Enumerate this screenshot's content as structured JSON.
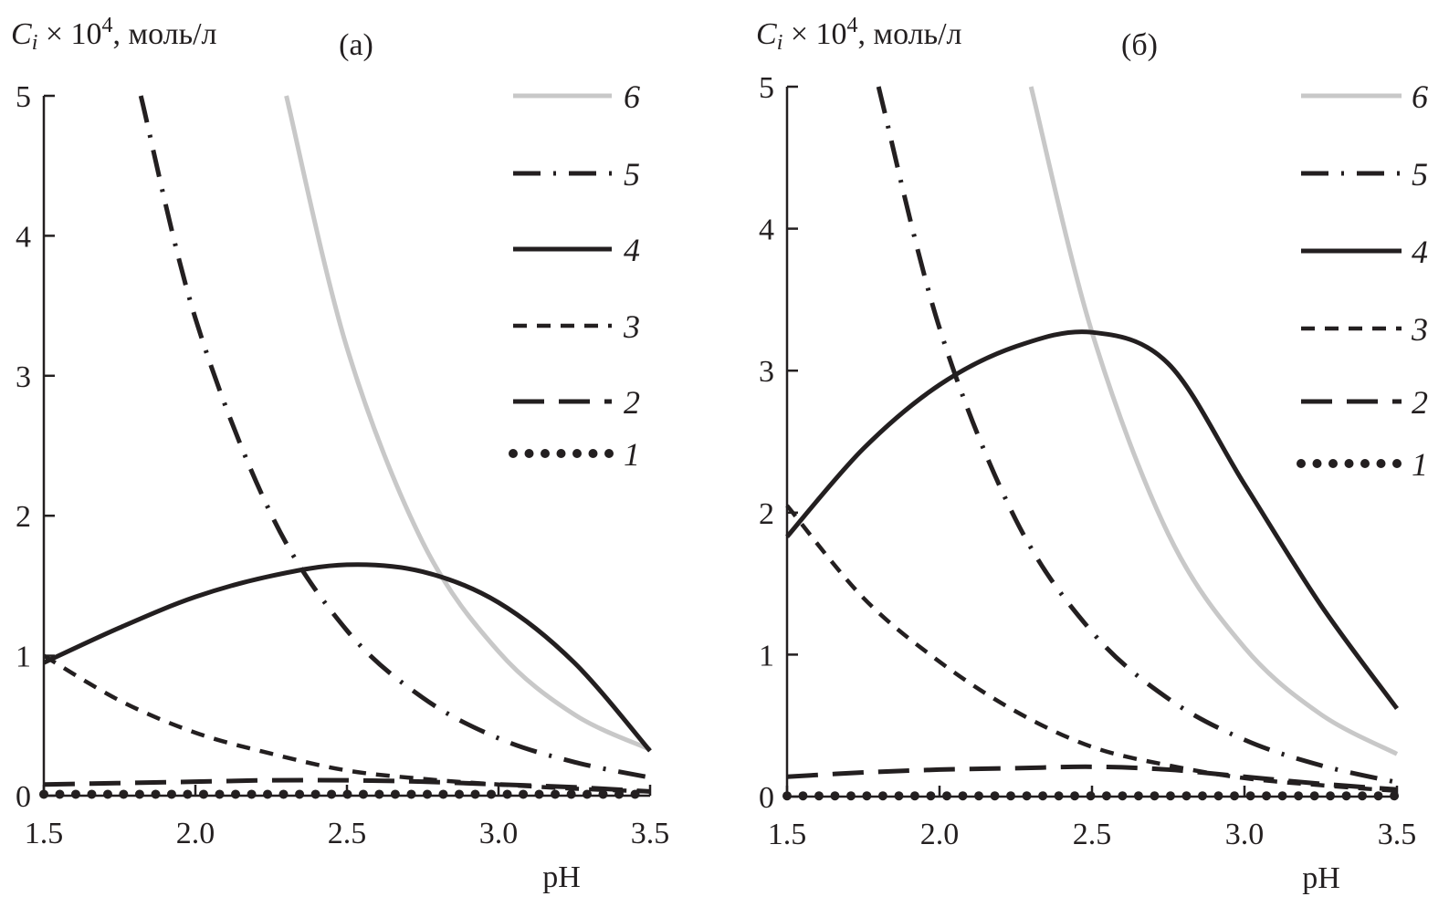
{
  "chart_data": [
    {
      "type": "line",
      "panel_label": "(а)",
      "ylabel": "Ci × 10⁴, моль/л",
      "ylabel_parts": {
        "symbol": "C",
        "subscript": "i",
        "rest": " × 10",
        "exp": "4",
        "unit": ", моль/л"
      },
      "xlabel": "pH",
      "xlim": [
        1.5,
        3.5
      ],
      "ylim": [
        0,
        5
      ],
      "xticks": [
        "1.5",
        "2.0",
        "2.5",
        "3.0",
        "3.5"
      ],
      "yticks": [
        "0",
        "1",
        "2",
        "3",
        "4",
        "5"
      ],
      "grid": false,
      "legend_position": "right",
      "series": [
        {
          "name": "6",
          "color": "#c8c8c8",
          "style": "solid-gray",
          "x": [
            2.3,
            2.5,
            2.75,
            3.0,
            3.25,
            3.5
          ],
          "y": [
            5.0,
            3.2,
            1.81,
            1.03,
            0.58,
            0.33
          ]
        },
        {
          "name": "5",
          "color": "#231f20",
          "style": "dash-dot",
          "x": [
            1.82,
            2.0,
            2.25,
            2.5,
            2.75,
            3.0,
            3.25,
            3.5
          ],
          "y": [
            5.0,
            3.41,
            2.01,
            1.18,
            0.7,
            0.41,
            0.24,
            0.13
          ]
        },
        {
          "name": "4",
          "color": "#231f20",
          "style": "solid",
          "x": [
            1.5,
            1.75,
            2.0,
            2.25,
            2.5,
            2.75,
            3.0,
            3.25,
            3.5
          ],
          "y": [
            0.95,
            1.2,
            1.42,
            1.57,
            1.65,
            1.6,
            1.38,
            0.95,
            0.32
          ]
        },
        {
          "name": "3",
          "color": "#231f20",
          "style": "short-dash",
          "x": [
            1.5,
            1.75,
            2.0,
            2.25,
            2.5,
            2.75,
            3.0,
            3.25,
            3.5
          ],
          "y": [
            1.0,
            0.68,
            0.45,
            0.3,
            0.18,
            0.12,
            0.08,
            0.05,
            0.03
          ]
        },
        {
          "name": "2",
          "color": "#231f20",
          "style": "long-dash",
          "x": [
            1.5,
            1.75,
            2.0,
            2.25,
            2.5,
            2.75,
            3.0,
            3.25,
            3.5
          ],
          "y": [
            0.08,
            0.09,
            0.1,
            0.11,
            0.11,
            0.1,
            0.08,
            0.06,
            0.03
          ]
        },
        {
          "name": "1",
          "color": "#231f20",
          "style": "dotted",
          "x": [
            1.5,
            2.5,
            3.5
          ],
          "y": [
            0.01,
            0.01,
            0.01
          ]
        }
      ]
    },
    {
      "type": "line",
      "panel_label": "(б)",
      "ylabel": "Ci × 10⁴, моль/л",
      "ylabel_parts": {
        "symbol": "C",
        "subscript": "i",
        "rest": " × 10",
        "exp": "4",
        "unit": ", моль/л"
      },
      "xlabel": "pH",
      "xlim": [
        1.5,
        3.5
      ],
      "ylim": [
        0,
        5
      ],
      "xticks": [
        "1.5",
        "2.0",
        "2.5",
        "3.0",
        "3.5"
      ],
      "yticks": [
        "0",
        "1",
        "2",
        "3",
        "4",
        "5"
      ],
      "grid": false,
      "legend_position": "right",
      "series": [
        {
          "name": "6",
          "color": "#c8c8c8",
          "style": "solid-gray",
          "x": [
            2.3,
            2.5,
            2.75,
            3.0,
            3.25,
            3.5
          ],
          "y": [
            5.0,
            3.27,
            1.85,
            1.05,
            0.58,
            0.3
          ]
        },
        {
          "name": "5",
          "color": "#231f20",
          "style": "dash-dot",
          "x": [
            1.8,
            2.0,
            2.25,
            2.5,
            2.75,
            3.0,
            3.25,
            3.5
          ],
          "y": [
            5.0,
            3.3,
            1.95,
            1.16,
            0.69,
            0.4,
            0.22,
            0.1
          ]
        },
        {
          "name": "4",
          "color": "#231f20",
          "style": "solid",
          "x": [
            1.5,
            1.75,
            2.0,
            2.25,
            2.5,
            2.75,
            3.0,
            3.25,
            3.5
          ],
          "y": [
            1.83,
            2.45,
            2.9,
            3.17,
            3.27,
            3.05,
            2.2,
            1.35,
            0.62
          ]
        },
        {
          "name": "3",
          "color": "#231f20",
          "style": "short-dash",
          "x": [
            1.5,
            1.75,
            2.0,
            2.25,
            2.5,
            2.75,
            3.0,
            3.25,
            3.5
          ],
          "y": [
            2.05,
            1.4,
            0.95,
            0.6,
            0.35,
            0.22,
            0.13,
            0.08,
            0.04
          ]
        },
        {
          "name": "2",
          "color": "#231f20",
          "style": "long-dash",
          "x": [
            1.5,
            1.75,
            2.0,
            2.25,
            2.5,
            2.75,
            3.0,
            3.25,
            3.5
          ],
          "y": [
            0.14,
            0.17,
            0.19,
            0.2,
            0.21,
            0.19,
            0.14,
            0.09,
            0.05
          ]
        },
        {
          "name": "1",
          "color": "#231f20",
          "style": "dotted",
          "x": [
            1.5,
            2.5,
            3.5
          ],
          "y": [
            0.005,
            0.005,
            0.005
          ]
        }
      ]
    }
  ]
}
